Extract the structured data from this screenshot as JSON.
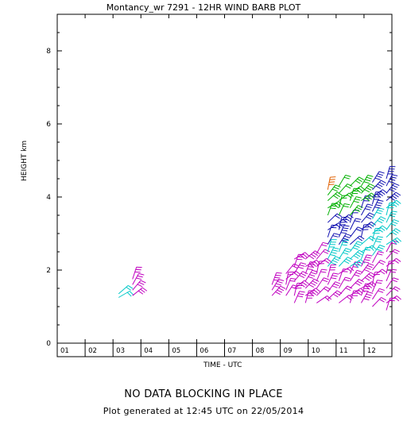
{
  "chart_data": {
    "type": "wind-barb",
    "title": "Montancy_wr 7291 - 12HR WIND BARB PLOT",
    "xlabel": "TIME - UTC",
    "ylabel": "HEIGHT km",
    "x_ticks": [
      "01",
      "02",
      "03",
      "04",
      "05",
      "06",
      "07",
      "08",
      "09",
      "10",
      "11",
      "12"
    ],
    "y_ticks": [
      0,
      2,
      4,
      6,
      8
    ],
    "ylim": [
      0,
      9.0
    ],
    "xlim": [
      0.5,
      12.5
    ],
    "grid": false,
    "series": [
      {
        "time": 2.7,
        "heights": [
          1.25,
          1.35
        ],
        "color": "#00c8c8"
      },
      {
        "time": 3.2,
        "heights": [
          1.3,
          1.45,
          1.6,
          1.75
        ],
        "color": "#c000c0"
      },
      {
        "time": 8.2,
        "heights": [
          1.3,
          1.45,
          1.6
        ],
        "color": "#c000c0"
      },
      {
        "time": 8.7,
        "heights": [
          1.3,
          1.45,
          1.6,
          1.75,
          1.9
        ],
        "color": "#c000c0"
      },
      {
        "time": 9.0,
        "heights": [
          1.1,
          1.3,
          1.5,
          1.7,
          1.9,
          2.1,
          2.3
        ],
        "color": "#c000c0"
      },
      {
        "time": 9.4,
        "heights": [
          1.1,
          1.3,
          1.5,
          1.7,
          1.9,
          2.1,
          2.3
        ],
        "color": "#c000c0"
      },
      {
        "time": 9.8,
        "heights": [
          1.1,
          1.3,
          1.5,
          1.7,
          1.9,
          2.1,
          2.3,
          2.45
        ],
        "color": "#c000c0"
      },
      {
        "time": 10.2,
        "heights": [
          1.2,
          1.4,
          1.6,
          1.8
        ],
        "color": "#c000c0"
      },
      {
        "time": 10.2,
        "heights": [
          2.1,
          2.3,
          2.5
        ],
        "color": "#00c8c8"
      },
      {
        "time": 10.2,
        "heights": [
          2.7,
          2.9,
          3.1,
          3.3
        ],
        "color": "#1010b0"
      },
      {
        "time": 10.2,
        "heights": [
          3.5,
          3.7,
          3.9,
          4.05
        ],
        "color": "#00b000"
      },
      {
        "time": 10.2,
        "heights": [
          4.2
        ],
        "color": "#e06000"
      },
      {
        "time": 10.6,
        "heights": [
          1.1,
          1.3,
          1.5,
          1.7,
          1.9
        ],
        "color": "#c000c0"
      },
      {
        "time": 10.6,
        "heights": [
          2.1,
          2.3,
          2.5
        ],
        "color": "#00c8c8"
      },
      {
        "time": 10.6,
        "heights": [
          2.7,
          2.9,
          3.1,
          3.3
        ],
        "color": "#1010b0"
      },
      {
        "time": 10.6,
        "heights": [
          3.5,
          3.7,
          3.9,
          4.1,
          4.3
        ],
        "color": "#00b000"
      },
      {
        "time": 11.0,
        "heights": [
          1.1,
          1.3,
          1.5,
          1.7,
          1.9
        ],
        "color": "#c000c0"
      },
      {
        "time": 11.0,
        "heights": [
          2.1,
          2.3,
          2.5
        ],
        "color": "#00c8c8"
      },
      {
        "time": 11.0,
        "heights": [
          2.7,
          2.9,
          3.1,
          3.3
        ],
        "color": "#1010b0"
      },
      {
        "time": 11.0,
        "heights": [
          3.5,
          3.7,
          3.9,
          4.1,
          4.3
        ],
        "color": "#00b000"
      },
      {
        "time": 11.4,
        "heights": [
          1.1,
          1.3,
          1.5,
          1.7,
          1.9,
          2.1
        ],
        "color": "#c000c0"
      },
      {
        "time": 11.4,
        "heights": [
          2.3,
          2.5,
          2.7
        ],
        "color": "#00c8c8"
      },
      {
        "time": 11.4,
        "heights": [
          2.9,
          3.1,
          3.3,
          3.5,
          3.7
        ],
        "color": "#1010b0"
      },
      {
        "time": 11.4,
        "heights": [
          3.9,
          4.1,
          4.3
        ],
        "color": "#00b000"
      },
      {
        "time": 11.8,
        "heights": [
          1.0,
          1.2,
          1.4,
          1.6,
          1.8,
          2.0,
          2.2
        ],
        "color": "#c000c0"
      },
      {
        "time": 11.8,
        "heights": [
          2.4,
          2.6,
          2.8,
          3.0,
          3.2,
          3.4
        ],
        "color": "#00c8c8"
      },
      {
        "time": 11.8,
        "heights": [
          3.6,
          3.8,
          4.0,
          4.2,
          4.4
        ],
        "color": "#1010b0"
      },
      {
        "time": 12.3,
        "heights": [
          0.9,
          1.1,
          1.3,
          1.5,
          1.7,
          1.9,
          2.1,
          2.3,
          2.5
        ],
        "color": "#c000c0"
      },
      {
        "time": 12.3,
        "heights": [
          2.7,
          2.9,
          3.1,
          3.3,
          3.5,
          3.7
        ],
        "color": "#00c8c8"
      },
      {
        "time": 12.3,
        "heights": [
          3.9,
          4.1,
          4.3,
          4.5
        ],
        "color": "#1010b0"
      }
    ]
  },
  "footer": {
    "status": "NO DATA BLOCKING IN PLACE",
    "generated": "Plot generated at 12:45 UTC on 22/05/2014"
  }
}
